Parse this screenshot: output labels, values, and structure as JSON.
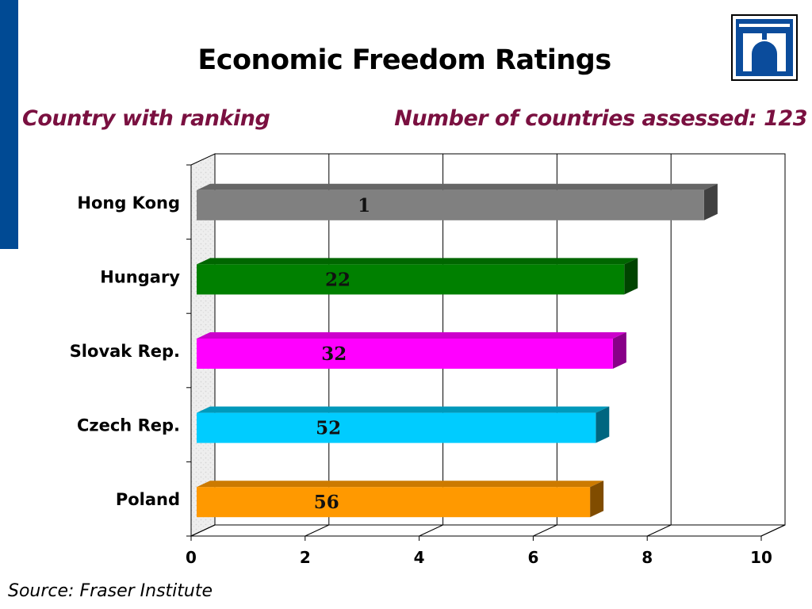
{
  "colors": {
    "left_bar": "#004a94",
    "logo_blue": "#0b4c9c",
    "subtitle": "#7a1040"
  },
  "header": {
    "title": "Economic Freedom Ratings",
    "subtitle_left": "Country with ranking",
    "subtitle_right": "Number of countries assessed: 123"
  },
  "logo": {
    "icon": "bridge-logo-icon"
  },
  "footer": {
    "source": "Source: Fraser Institute"
  },
  "chart_data": {
    "type": "bar",
    "orientation": "horizontal",
    "style": "3d",
    "categories": [
      "Hong Kong",
      "Hungary",
      "Slovak Rep.",
      "Czech Rep.",
      "Poland"
    ],
    "values": [
      8.9,
      7.5,
      7.3,
      7.0,
      6.9
    ],
    "data_labels": [
      "1",
      "22",
      "32",
      "52",
      "56"
    ],
    "bar_colors": [
      "#808080",
      "#008000",
      "#ff00ff",
      "#00ccff",
      "#ff9900"
    ],
    "bar_side_colors": [
      "#404040",
      "#004400",
      "#880088",
      "#006680",
      "#804c00"
    ],
    "bar_top_colors": [
      "#666666",
      "#006600",
      "#cc00cc",
      "#0099bb",
      "#cc7a00"
    ],
    "xlim": [
      0,
      10
    ],
    "xticks": [
      "0",
      "2",
      "4",
      "6",
      "8",
      "10"
    ],
    "grid": true,
    "title": "Economic Freedom Ratings",
    "xlabel": "",
    "ylabel": ""
  }
}
